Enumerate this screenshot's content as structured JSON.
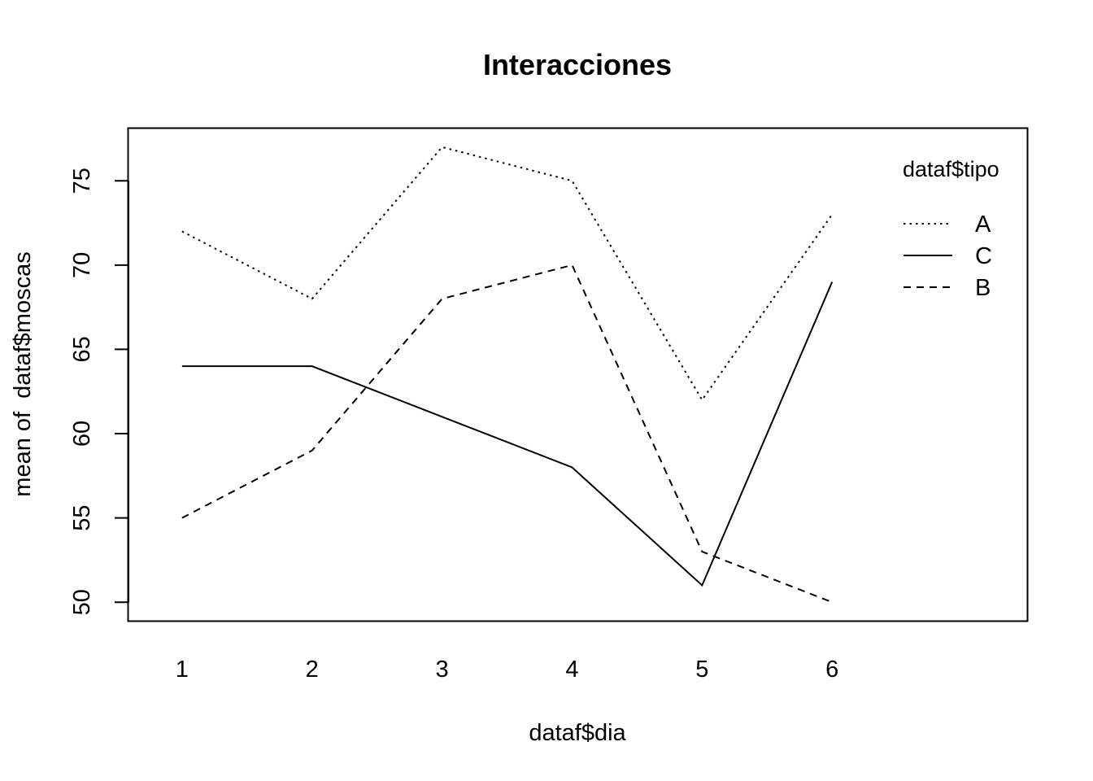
{
  "chart_data": {
    "type": "line",
    "title": "Interacciones",
    "xlabel": "dataf$dia",
    "ylabel": "mean of  dataf$moscas",
    "x": [
      1,
      2,
      3,
      4,
      5,
      6
    ],
    "y_ticks": [
      50,
      55,
      60,
      65,
      70,
      75
    ],
    "ylim": [
      48.9,
      78.1
    ],
    "grid": false,
    "legend": {
      "title": "dataf$tipo",
      "placement": "top-right",
      "entries": [
        "A",
        "C",
        "B"
      ]
    },
    "series": [
      {
        "name": "A",
        "line_style": "dotted",
        "values": [
          72,
          68,
          77,
          75,
          62,
          73
        ]
      },
      {
        "name": "C",
        "line_style": "solid",
        "values": [
          64,
          64,
          61,
          58,
          51,
          69
        ]
      },
      {
        "name": "B",
        "line_style": "dashed",
        "values": [
          55,
          59,
          68,
          70,
          53,
          50
        ]
      }
    ],
    "colors": {
      "line": "#000000",
      "background": "#ffffff"
    }
  }
}
